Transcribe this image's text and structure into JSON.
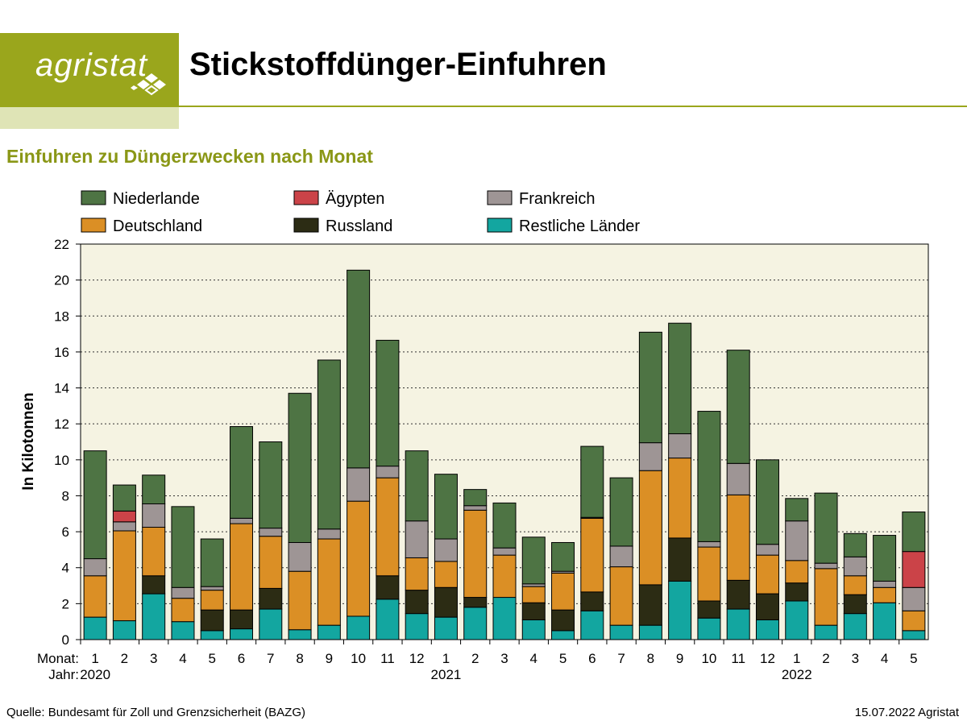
{
  "header": {
    "logo_text": "agristat",
    "title": "Stickstoffdünger-Einfuhren"
  },
  "subtitle": "Einfuhren zu Düngerzwecken nach Monat",
  "footer": {
    "source": "Quelle: Bundesamt für Zoll und Grenzsicherheit (BAZG)",
    "stamp": "15.07.2022 Agristat"
  },
  "chart_data": {
    "type": "bar",
    "stacked": true,
    "ylabel": "In Kilotonnen",
    "ylim": [
      0,
      22
    ],
    "yticks": [
      0,
      2,
      4,
      6,
      8,
      10,
      12,
      14,
      16,
      18,
      20,
      22
    ],
    "grid": "horizontal dotted",
    "legend_position": "top",
    "x_row_labels": {
      "month": "Monat:",
      "year": "Jahr:"
    },
    "categories": [
      "1",
      "2",
      "3",
      "4",
      "5",
      "6",
      "7",
      "8",
      "9",
      "10",
      "11",
      "12",
      "1",
      "2",
      "3",
      "4",
      "5",
      "6",
      "7",
      "8",
      "9",
      "10",
      "11",
      "12",
      "1",
      "2",
      "3",
      "4",
      "5"
    ],
    "years": [
      {
        "label": "2020",
        "start_index": 0
      },
      {
        "label": "2021",
        "start_index": 12
      },
      {
        "label": "2022",
        "start_index": 24
      }
    ],
    "series": [
      {
        "name": "Restliche Länder",
        "color": "#13a6a0",
        "values": [
          1.25,
          1.05,
          2.55,
          1.0,
          0.5,
          0.6,
          1.7,
          0.55,
          0.8,
          1.3,
          2.25,
          1.45,
          1.25,
          1.8,
          2.35,
          1.1,
          0.5,
          1.6,
          0.8,
          0.8,
          3.25,
          1.2,
          1.7,
          1.1,
          2.15,
          0.8,
          1.45,
          2.05,
          0.5
        ]
      },
      {
        "name": "Russland",
        "color": "#2c2c14",
        "values": [
          0.0,
          0.0,
          1.0,
          0.0,
          1.15,
          1.05,
          1.15,
          0.0,
          0.0,
          0.0,
          1.3,
          1.3,
          1.65,
          0.55,
          0.0,
          0.95,
          1.15,
          1.05,
          0.0,
          2.25,
          2.4,
          0.95,
          1.6,
          1.45,
          1.0,
          0.0,
          1.05,
          0.0,
          0.0
        ]
      },
      {
        "name": "Deutschland",
        "color": "#db8f25",
        "values": [
          2.3,
          5.0,
          2.7,
          1.3,
          1.1,
          4.8,
          2.9,
          3.25,
          4.8,
          6.4,
          5.45,
          1.8,
          1.45,
          4.85,
          2.35,
          0.9,
          2.05,
          4.1,
          3.25,
          6.35,
          4.45,
          3.0,
          4.75,
          2.15,
          1.25,
          3.15,
          1.05,
          0.85,
          1.1
        ]
      },
      {
        "name": "Frankreich",
        "color": "#9e9595",
        "values": [
          0.95,
          0.5,
          1.3,
          0.6,
          0.2,
          0.3,
          0.45,
          1.6,
          0.55,
          1.85,
          0.65,
          2.05,
          1.25,
          0.25,
          0.4,
          0.15,
          0.1,
          0.05,
          1.15,
          1.55,
          1.35,
          0.3,
          1.75,
          0.6,
          2.2,
          0.3,
          1.05,
          0.35,
          1.3
        ]
      },
      {
        "name": "Ägypten",
        "color": "#cb4348",
        "values": [
          0.0,
          0.6,
          0.0,
          0.0,
          0.0,
          0.0,
          0.0,
          0.0,
          0.0,
          0.0,
          0.0,
          0.0,
          0.0,
          0.0,
          0.0,
          0.0,
          0.0,
          0.0,
          0.0,
          0.0,
          0.0,
          0.0,
          0.0,
          0.0,
          0.0,
          0.0,
          0.0,
          0.0,
          2.0
        ]
      },
      {
        "name": "Niederlande",
        "color": "#4e7444",
        "values": [
          6.0,
          1.45,
          1.6,
          4.5,
          2.65,
          5.1,
          4.8,
          8.3,
          9.4,
          11.0,
          7.0,
          3.9,
          3.6,
          0.9,
          2.5,
          2.6,
          1.6,
          3.95,
          3.8,
          6.15,
          6.15,
          7.25,
          6.3,
          4.7,
          1.25,
          3.9,
          1.3,
          2.55,
          2.2
        ]
      }
    ],
    "legend_order": [
      "Niederlande",
      "Ägypten",
      "Frankreich",
      "Deutschland",
      "Russland",
      "Restliche Länder"
    ]
  }
}
